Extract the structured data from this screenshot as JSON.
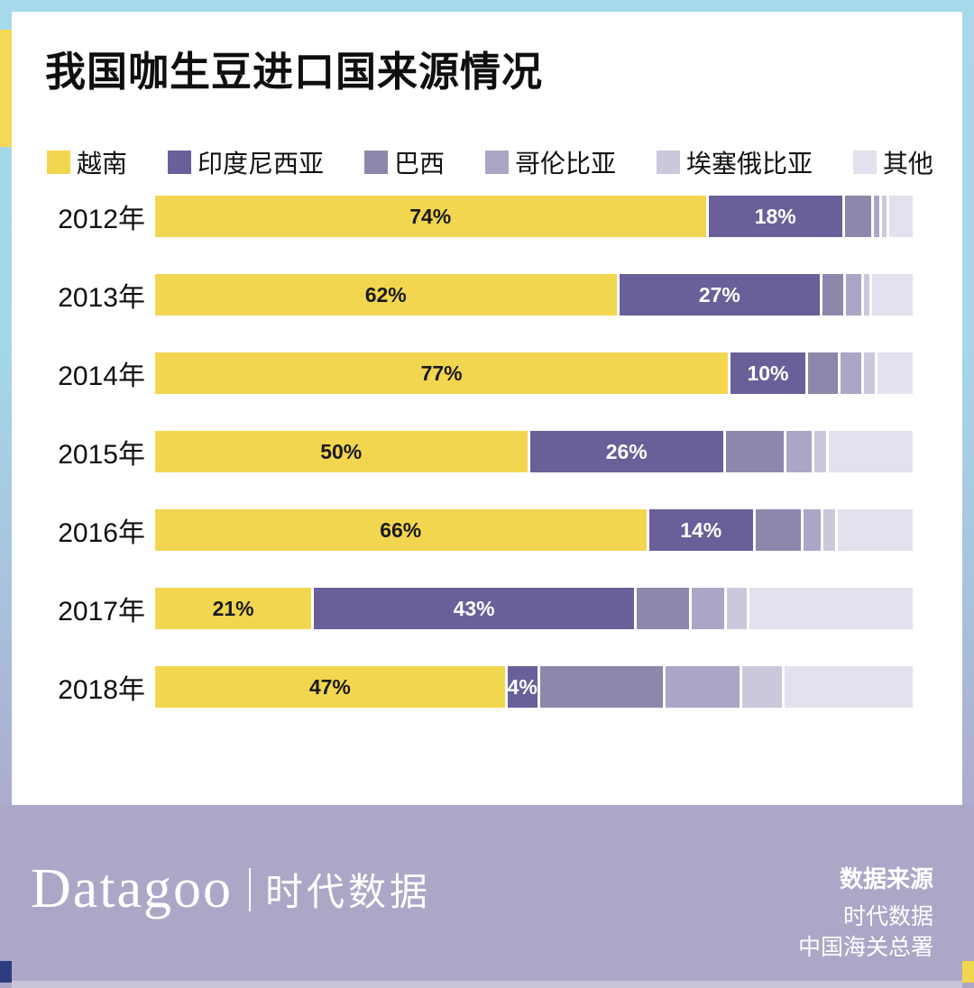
{
  "frame": {
    "gradient_top_color": "#A6D9EA",
    "gradient_bottom_color": "#ACA5C8",
    "left_accent_color": "#F5D854",
    "navy_accent_color": "#2E3C80",
    "yellow_accent_color": "#F2D64F"
  },
  "title": "我国咖生豆进口国来源情况",
  "legend": [
    {
      "label": "越南",
      "color": "#F2D64F"
    },
    {
      "label": "印度尼西亚",
      "color": "#6A5F98"
    },
    {
      "label": "巴西",
      "color": "#8D87AC"
    },
    {
      "label": "哥伦比亚",
      "color": "#ABA5C6"
    },
    {
      "label": "埃塞俄比亚",
      "color": "#CCC8DC"
    },
    {
      "label": "其他",
      "color": "#E2E1ED"
    }
  ],
  "chart_data": {
    "type": "bar",
    "stacked": true,
    "orientation": "horizontal",
    "title": "我国咖生豆进口国来源情况",
    "unit": "%",
    "xlim": [
      0,
      100
    ],
    "grid": false,
    "categories": [
      "2012年",
      "2013年",
      "2014年",
      "2015年",
      "2016年",
      "2017年",
      "2018年"
    ],
    "series": [
      {
        "name": "越南",
        "color": "#F2D64F",
        "values": [
          74,
          62,
          77,
          50,
          66,
          21,
          47
        ]
      },
      {
        "name": "印度尼西亚",
        "color": "#6A5F98",
        "values": [
          18,
          27,
          10,
          26,
          14,
          43,
          4
        ]
      },
      {
        "name": "巴西",
        "color": "#8D87AC",
        "values": [
          3.5,
          2.8,
          4.0,
          7.7,
          6.0,
          7.0,
          16.5
        ]
      },
      {
        "name": "哥伦比亚",
        "color": "#ABA5C6",
        "values": [
          0.7,
          2.0,
          2.8,
          3.5,
          2.4,
          4.4,
          10.0
        ]
      },
      {
        "name": "埃塞俄比亚",
        "color": "#CCC8DC",
        "values": [
          0.7,
          0.7,
          1.5,
          1.5,
          1.5,
          2.6,
          5.3
        ]
      },
      {
        "name": "其他",
        "color": "#E2E1ED",
        "values": [
          3.1,
          5.5,
          4.7,
          11.3,
          10.1,
          22.0,
          17.2
        ]
      }
    ],
    "data_labels": [
      [
        "74%",
        "18%",
        null,
        null,
        null,
        null
      ],
      [
        "62%",
        "27%",
        null,
        null,
        null,
        null
      ],
      [
        "77%",
        "10%",
        null,
        null,
        null,
        null
      ],
      [
        "50%",
        "26%",
        null,
        null,
        null,
        null
      ],
      [
        "66%",
        "14%",
        null,
        null,
        null,
        null
      ],
      [
        "21%",
        "43%",
        null,
        null,
        null,
        null
      ],
      [
        "47%",
        "4%",
        null,
        null,
        null,
        null
      ]
    ],
    "data_label_colors": [
      "#1a1a1a",
      "#ffffff",
      "#ffffff",
      "#ffffff",
      "#1a1a1a",
      "#1a1a1a"
    ],
    "legend_position": "top"
  },
  "footer": {
    "brand": "Datagoo",
    "brand_cn": "时代数据",
    "source_heading": "数据来源",
    "source_lines": [
      "时代数据",
      "中国海关总署"
    ]
  }
}
